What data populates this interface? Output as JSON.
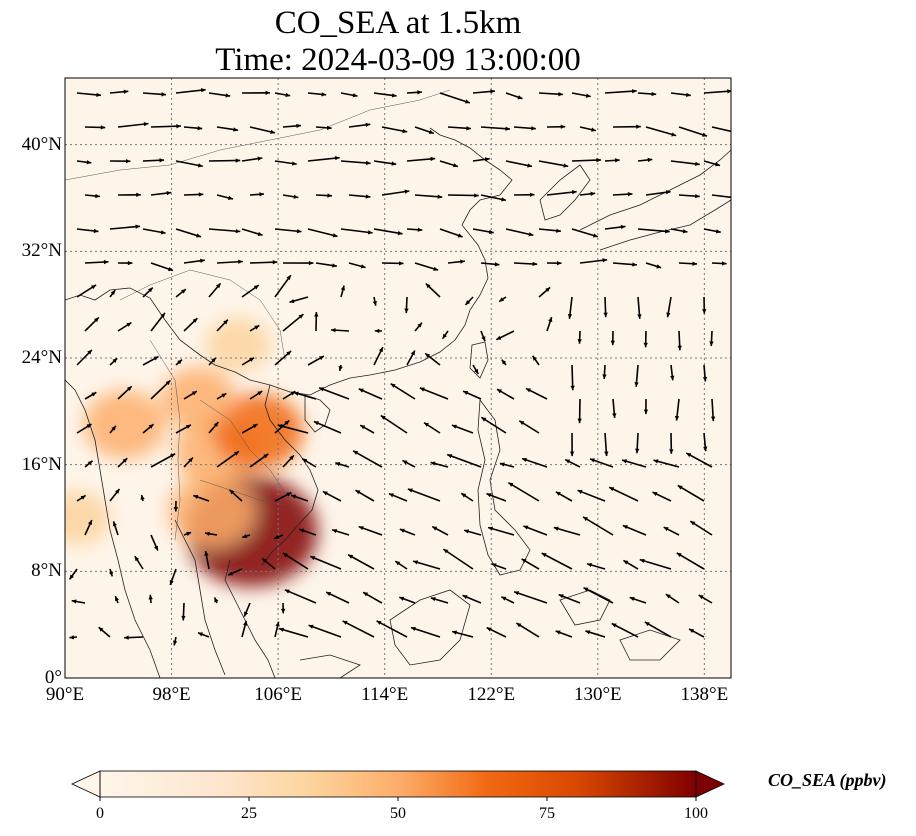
{
  "title": {
    "line1": "CO_SEA at 1.5km",
    "line2": "Time: 2024-03-09 13:00:00"
  },
  "map": {
    "lon_range": [
      90,
      140
    ],
    "lat_range": [
      0,
      45
    ],
    "gridlines": "dotted",
    "lat_ticks": [
      {
        "value": 0,
        "label": "0°"
      },
      {
        "value": 8,
        "label": "8°N"
      },
      {
        "value": 16,
        "label": "16°N"
      },
      {
        "value": 24,
        "label": "24°N"
      },
      {
        "value": 32,
        "label": "32°N"
      },
      {
        "value": 40,
        "label": "40°N"
      }
    ],
    "lon_ticks": [
      {
        "value": 90,
        "label": "90°E"
      },
      {
        "value": 98,
        "label": "98°E"
      },
      {
        "value": 106,
        "label": "106°E"
      },
      {
        "value": 114,
        "label": "114°E"
      },
      {
        "value": 122,
        "label": "122°E"
      },
      {
        "value": 130,
        "label": "130°E"
      },
      {
        "value": 138,
        "label": "138°E"
      }
    ]
  },
  "colorbar": {
    "label": "CO_SEA (ppbv)",
    "min": 0,
    "max": 100,
    "extend": "both",
    "colormap": [
      "#fff5eb",
      "#fdd49e",
      "#fdae6b",
      "#f16913",
      "#d94801",
      "#a63603",
      "#7f0000"
    ],
    "ticks": [
      "0",
      "25",
      "50",
      "75",
      "100"
    ]
  },
  "plumes": [
    {
      "lon": 101.5,
      "lat": 17,
      "value": 40
    },
    {
      "lon": 104.5,
      "lat": 18.5,
      "value": 45
    },
    {
      "lon": 94.5,
      "lat": 19,
      "value": 35
    },
    {
      "lon": 104,
      "lat": 11,
      "value": 95
    },
    {
      "lon": 101,
      "lat": 12.5,
      "value": 40
    },
    {
      "lon": 100,
      "lat": 21,
      "value": 25
    },
    {
      "lon": 103,
      "lat": 25,
      "value": 15
    },
    {
      "lon": 91,
      "lat": 12,
      "value": 15
    }
  ]
}
